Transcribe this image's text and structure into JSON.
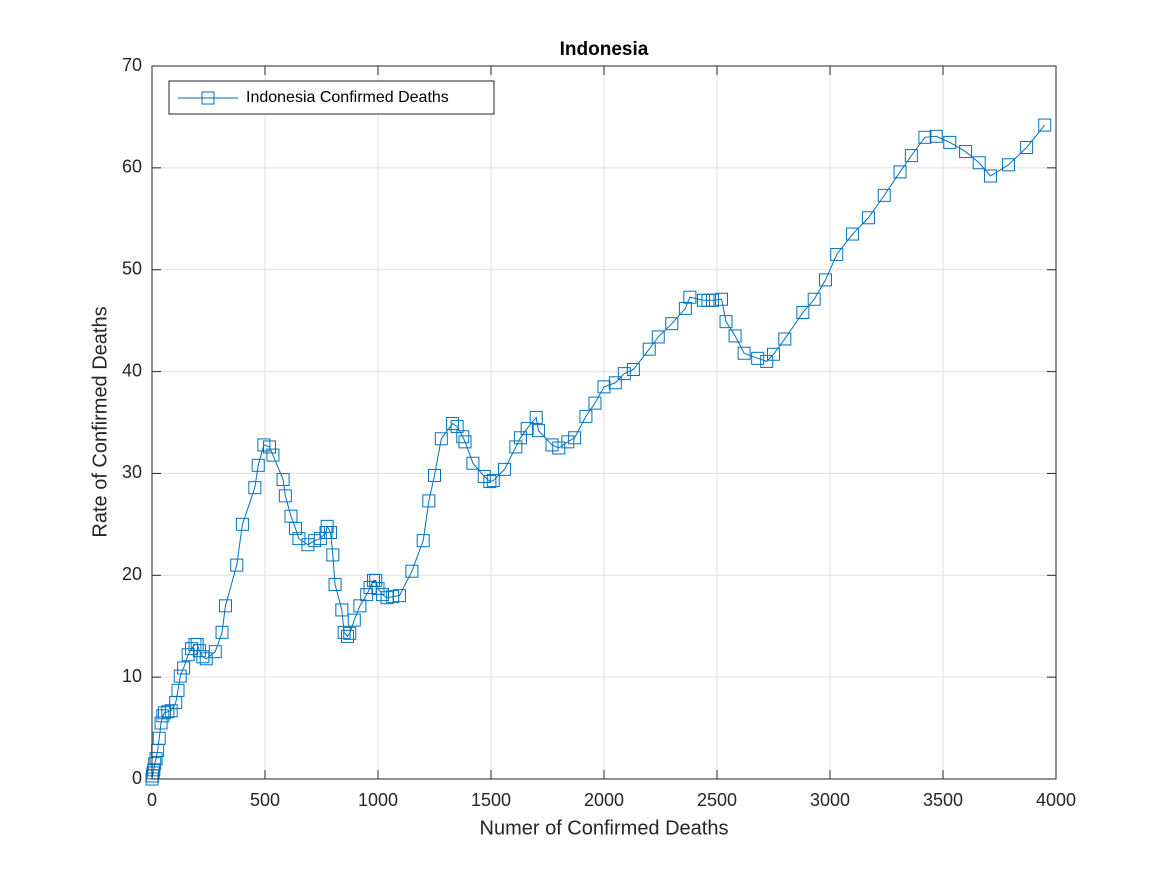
{
  "chart_data": {
    "type": "line",
    "title": "Indonesia",
    "xlabel": "Numer of Confirmed Deaths",
    "ylabel": "Rate of Confirmed Deaths",
    "xlim": [
      0,
      4000
    ],
    "xticks": [
      0,
      500,
      1000,
      1500,
      2000,
      2500,
      3000,
      3500,
      4000
    ],
    "ylim": [
      0,
      70
    ],
    "yticks": [
      0,
      10,
      20,
      30,
      40,
      50,
      60,
      70
    ],
    "grid": true,
    "legend": "northwest",
    "marker": "square",
    "x": [
      0,
      2,
      5,
      8,
      12,
      18,
      25,
      32,
      40,
      48,
      55,
      70,
      85,
      105,
      115,
      125,
      140,
      160,
      175,
      190,
      200,
      210,
      225,
      240,
      280,
      310,
      325,
      375,
      400,
      455,
      470,
      495,
      520,
      535,
      580,
      590,
      615,
      635,
      650,
      690,
      720,
      745,
      770,
      775,
      790,
      800,
      810,
      840,
      850,
      865,
      875,
      895,
      920,
      950,
      965,
      980,
      990,
      1000,
      1020,
      1040,
      1065,
      1095,
      1150,
      1200,
      1225,
      1250,
      1280,
      1330,
      1350,
      1375,
      1385,
      1420,
      1470,
      1495,
      1510,
      1560,
      1610,
      1630,
      1660,
      1700,
      1710,
      1770,
      1800,
      1840,
      1870,
      1920,
      1960,
      2000,
      2050,
      2090,
      2130,
      2200,
      2240,
      2300,
      2360,
      2380,
      2440,
      2460,
      2480,
      2520,
      2540,
      2580,
      2620,
      2680,
      2720,
      2750,
      2800,
      2880,
      2930,
      2980,
      3030,
      3100,
      3170,
      3240,
      3310,
      3360,
      3420,
      3470,
      3530,
      3600,
      3660,
      3710,
      3790,
      3870,
      3950
    ],
    "series": [
      {
        "name": "Indonesia Confirmed Deaths",
        "color": "#0072bd",
        "values": [
          0,
          0.3,
          0.6,
          0.9,
          1.5,
          2.0,
          2.8,
          4.0,
          5.5,
          6.2,
          6.5,
          6.6,
          6.7,
          7.5,
          8.7,
          10.1,
          10.9,
          12.2,
          12.8,
          13.2,
          13.2,
          12.6,
          12.0,
          11.8,
          12.5,
          14.4,
          17.0,
          21.0,
          25.0,
          28.6,
          30.8,
          32.8,
          32.6,
          31.8,
          29.4,
          27.8,
          25.8,
          24.6,
          23.6,
          23.0,
          23.4,
          23.6,
          24.2,
          24.8,
          24.2,
          22.0,
          19.1,
          16.6,
          14.4,
          14.0,
          14.3,
          15.6,
          17.0,
          18.1,
          18.8,
          19.5,
          19.5,
          18.7,
          18.1,
          17.8,
          17.9,
          18.0,
          20.4,
          23.4,
          27.3,
          29.8,
          33.4,
          34.9,
          34.6,
          33.6,
          33.1,
          31.0,
          29.7,
          29.2,
          29.3,
          30.4,
          32.6,
          33.5,
          34.4,
          35.5,
          34.2,
          32.8,
          32.5,
          33.1,
          33.5,
          35.6,
          36.9,
          38.5,
          38.9,
          39.8,
          40.2,
          42.2,
          43.4,
          44.7,
          46.2,
          47.3,
          47.0,
          47.0,
          47.0,
          47.1,
          44.9,
          43.5,
          41.8,
          41.3,
          41.0,
          41.7,
          43.2,
          45.8,
          47.1,
          49.0,
          51.5,
          53.5,
          55.1,
          57.3,
          59.6,
          61.2,
          63.0,
          63.1,
          62.5,
          61.6,
          60.5,
          59.2,
          60.3,
          62.0,
          64.2
        ]
      }
    ]
  }
}
